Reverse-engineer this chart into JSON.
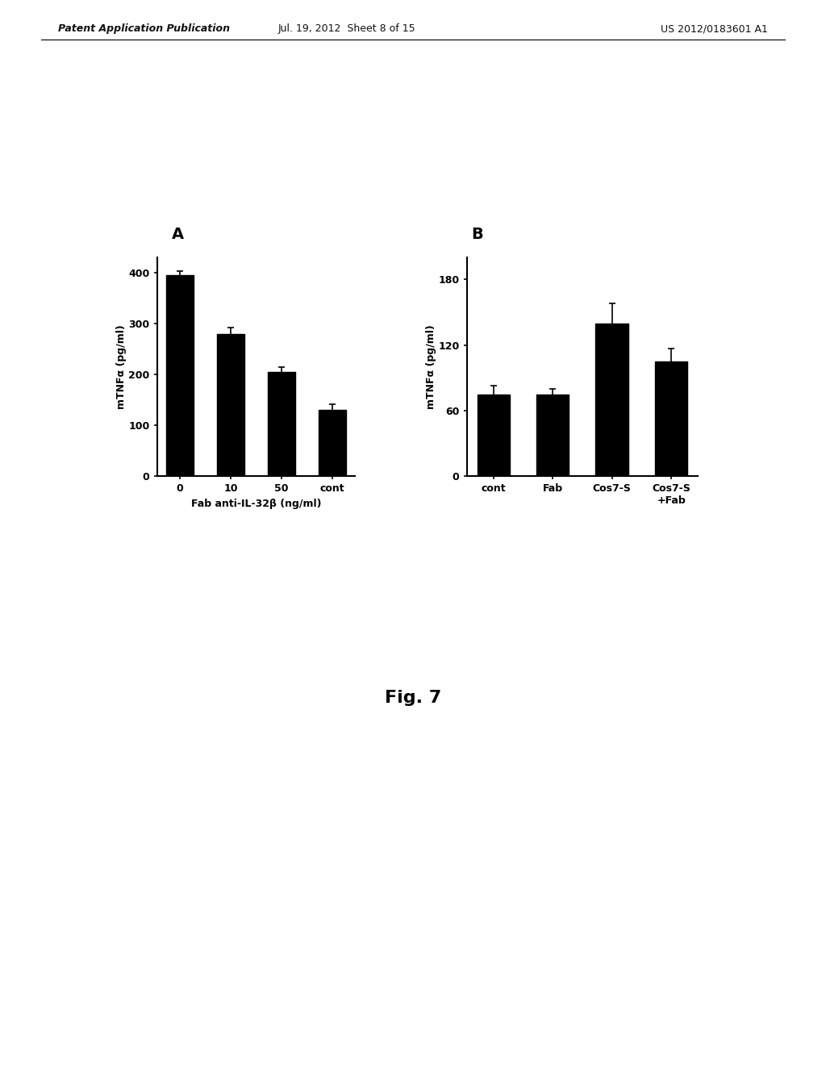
{
  "panel_A": {
    "label": "A",
    "categories": [
      "0",
      "10",
      "50",
      "cont"
    ],
    "values": [
      395,
      280,
      205,
      130
    ],
    "errors": [
      8,
      12,
      10,
      12
    ],
    "ylabel": "mTNFα (pg/ml)",
    "xlabel": "Fab anti-IL-32β (ng/ml)",
    "yticks": [
      0,
      100,
      200,
      300,
      400
    ],
    "ylim": [
      0,
      430
    ],
    "bar_color": "#000000",
    "bar_width": 0.55
  },
  "panel_B": {
    "label": "B",
    "categories": [
      "cont",
      "Fab",
      "Cos7-S",
      "Cos7-S\n+Fab"
    ],
    "values": [
      75,
      75,
      140,
      105
    ],
    "errors": [
      8,
      5,
      18,
      12
    ],
    "ylabel": "mTNFα (pg/ml)",
    "xlabel": "",
    "yticks": [
      0,
      60,
      120,
      180
    ],
    "ylim": [
      0,
      200
    ],
    "bar_color": "#000000",
    "bar_width": 0.55
  },
  "figure_label": "Fig. 7",
  "header_left": "Patent Application Publication",
  "header_mid": "Jul. 19, 2012  Sheet 8 of 15",
  "header_right": "US 2012/0183601 A1",
  "bg_color": "#ffffff"
}
